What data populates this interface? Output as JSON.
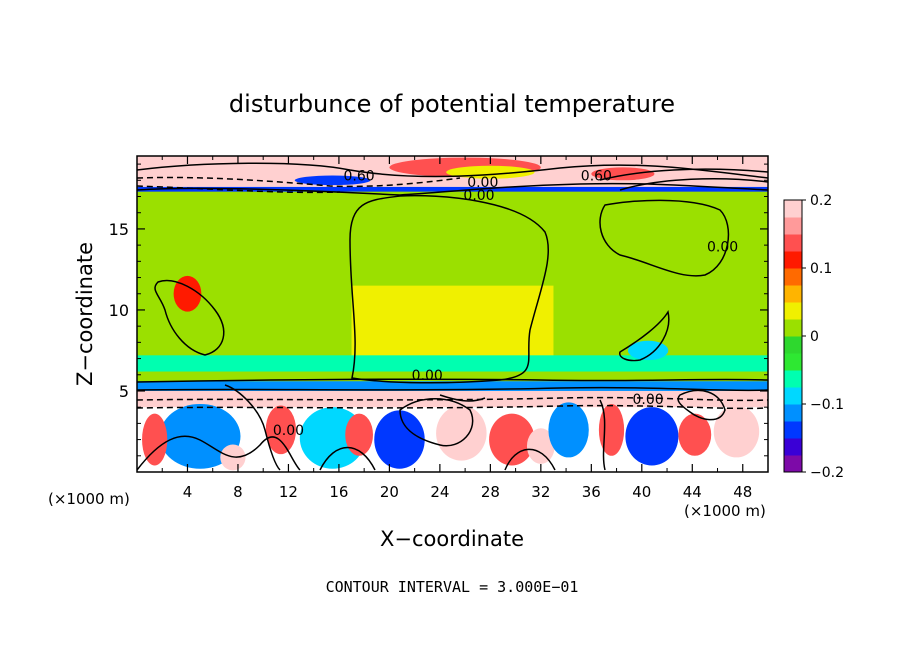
{
  "chart_data": {
    "type": "heatmap",
    "title": "disturbunce of potential temperature",
    "xlabel": "X−coordinate",
    "ylabel": "Z−coordinate",
    "x_unit_left": "(×1000 m)",
    "x_unit_right": "(×1000 m)",
    "xlim": [
      0,
      50
    ],
    "ylim": [
      0,
      19.5
    ],
    "x_ticks": [
      {
        "value": 4,
        "label": "4"
      },
      {
        "value": 8,
        "label": "8"
      },
      {
        "value": 12,
        "label": "12"
      },
      {
        "value": 16,
        "label": "16"
      },
      {
        "value": 20,
        "label": "20"
      },
      {
        "value": 24,
        "label": "24"
      },
      {
        "value": 28,
        "label": "28"
      },
      {
        "value": 32,
        "label": "32"
      },
      {
        "value": 36,
        "label": "36"
      },
      {
        "value": 40,
        "label": "40"
      },
      {
        "value": 44,
        "label": "44"
      },
      {
        "value": 48,
        "label": "48"
      }
    ],
    "y_ticks": [
      {
        "value": 5,
        "label": "5"
      },
      {
        "value": 10,
        "label": "10"
      },
      {
        "value": 15,
        "label": "15"
      }
    ],
    "contour_interval_text": "CONTOUR INTERVAL = 3.000E−01",
    "contour_labels": [
      {
        "text": "0.60",
        "x": 17.6,
        "z": 18.3
      },
      {
        "text": "0.00",
        "x": 27.4,
        "z": 17.9
      },
      {
        "text": "0.00",
        "x": 27.1,
        "z": 17.1
      },
      {
        "text": "0.60",
        "x": 36.4,
        "z": 18.3
      },
      {
        "text": "0.00",
        "x": 46.4,
        "z": 13.9
      },
      {
        "text": "0.00",
        "x": 23.0,
        "z": 6.0
      },
      {
        "text": "0.00",
        "x": 12.0,
        "z": 2.6
      },
      {
        "text": "0.00",
        "x": 40.5,
        "z": 4.5
      }
    ],
    "colorbar": {
      "min": -0.2,
      "max": 0.2,
      "ticks": [
        {
          "value": 0.2,
          "label": "0.2"
        },
        {
          "value": 0.1,
          "label": "0.1"
        },
        {
          "value": 0.0,
          "label": "0"
        },
        {
          "value": -0.1,
          "label": "−0.1"
        },
        {
          "value": -0.2,
          "label": "−0.2"
        }
      ],
      "colors": [
        "#7d0aa8",
        "#3a00d6",
        "#0038ff",
        "#0090ff",
        "#00d8ff",
        "#00ffb0",
        "#2ee832",
        "#2ed82e",
        "#9be000",
        "#f0f000",
        "#ffb400",
        "#ff6a00",
        "#ff1a00",
        "#ff5050",
        "#ff9a9a",
        "#ffd0d0"
      ]
    },
    "regions": [
      {
        "value": 0.02,
        "x0": 0,
        "x1": 50,
        "z0": 5.2,
        "z1": 17.4
      },
      {
        "value": 0.035,
        "x0": 17,
        "x1": 33,
        "z0": 6.5,
        "z1": 11.5
      },
      {
        "value": -0.06,
        "x0": 0,
        "x1": 50,
        "z0": 6.2,
        "z1": 7.2
      },
      {
        "value": -0.12,
        "x0": 0,
        "x1": 50,
        "z0": 5.0,
        "z1": 5.6
      },
      {
        "value": 0.3,
        "x0": 0,
        "x1": 50,
        "z0": 4.0,
        "z1": 5.0
      },
      {
        "value": -0.15,
        "x0": 0,
        "x1": 50,
        "z0": 17.3,
        "z1": 17.6
      },
      {
        "value": 0.3,
        "x0": 0,
        "x1": 50,
        "z0": 17.6,
        "z1": 19.5
      }
    ],
    "blobs": [
      {
        "value": -0.12,
        "x": 5,
        "z": 2.2,
        "rx": 3.2,
        "rz": 2.0
      },
      {
        "value": 0.15,
        "x": 1.4,
        "z": 2.0,
        "rx": 1.0,
        "rz": 1.6
      },
      {
        "value": 0.3,
        "x": 7.6,
        "z": 0.9,
        "rx": 1.0,
        "rz": 0.8
      },
      {
        "value": 0.15,
        "x": 11.4,
        "z": 2.6,
        "rx": 1.2,
        "rz": 1.5
      },
      {
        "value": -0.1,
        "x": 15.5,
        "z": 2.1,
        "rx": 2.6,
        "rz": 1.9
      },
      {
        "value": 0.15,
        "x": 17.6,
        "z": 2.3,
        "rx": 1.1,
        "rz": 1.3
      },
      {
        "value": -0.14,
        "x": 20.8,
        "z": 2.0,
        "rx": 2.0,
        "rz": 1.8
      },
      {
        "value": 0.3,
        "x": 25.7,
        "z": 2.4,
        "rx": 2.0,
        "rz": 1.7
      },
      {
        "value": 0.15,
        "x": 29.7,
        "z": 2.0,
        "rx": 1.8,
        "rz": 1.6
      },
      {
        "value": 0.3,
        "x": 32.0,
        "z": 1.6,
        "rx": 1.1,
        "rz": 1.1
      },
      {
        "value": -0.12,
        "x": 34.2,
        "z": 2.6,
        "rx": 1.6,
        "rz": 1.7
      },
      {
        "value": 0.15,
        "x": 37.6,
        "z": 2.6,
        "rx": 1.0,
        "rz": 1.6
      },
      {
        "value": -0.14,
        "x": 40.8,
        "z": 2.2,
        "rx": 2.1,
        "rz": 1.8
      },
      {
        "value": 0.15,
        "x": 44.2,
        "z": 2.3,
        "rx": 1.3,
        "rz": 1.3
      },
      {
        "value": 0.3,
        "x": 47.5,
        "z": 2.5,
        "rx": 1.8,
        "rz": 1.6
      },
      {
        "value": 0.3,
        "x": 2.6,
        "z": 18.8,
        "rx": 2.5,
        "rz": 0.6
      },
      {
        "value": -0.15,
        "x": 15.5,
        "z": 18.0,
        "rx": 3.0,
        "rz": 0.3
      },
      {
        "value": 0.15,
        "x": 26,
        "z": 18.8,
        "rx": 6.0,
        "rz": 0.6
      },
      {
        "value": 0.03,
        "x": 28,
        "z": 18.5,
        "rx": 3.5,
        "rz": 0.4
      },
      {
        "value": 0.15,
        "x": 38.5,
        "z": 18.4,
        "rx": 2.5,
        "rz": 0.4
      },
      {
        "value": 0.12,
        "x": 4,
        "z": 11.0,
        "rx": 1.1,
        "rz": 1.1
      },
      {
        "value": -0.08,
        "x": 40.5,
        "z": 7.5,
        "rx": 1.6,
        "rz": 0.6
      }
    ]
  }
}
